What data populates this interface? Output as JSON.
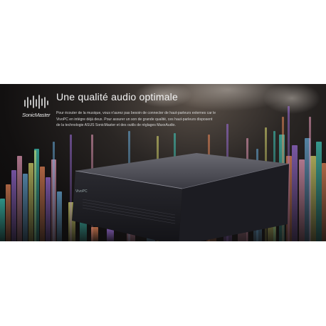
{
  "banner": {
    "logo_text": "SonicMaster",
    "headline": "Une qualité audio optimale",
    "body": "Pour écouter de la musique, vous n'aurez pas besoin de connecter de haut-parleurs externes car le VivoPC en intègre déjà deux. Pour assurer un son de grande qualité, ces haut-parleurs disposent de la technologie ASUS SonicMaster et des outils de réglages MaxxAudio.",
    "device_label": "VivoPC",
    "colors": {
      "background": "#ffffff",
      "banner": "#121010",
      "teal": "#3fd0c0",
      "orange": "#f08a5a",
      "purple": "#a070e0",
      "pink": "#f0a0c0"
    }
  }
}
